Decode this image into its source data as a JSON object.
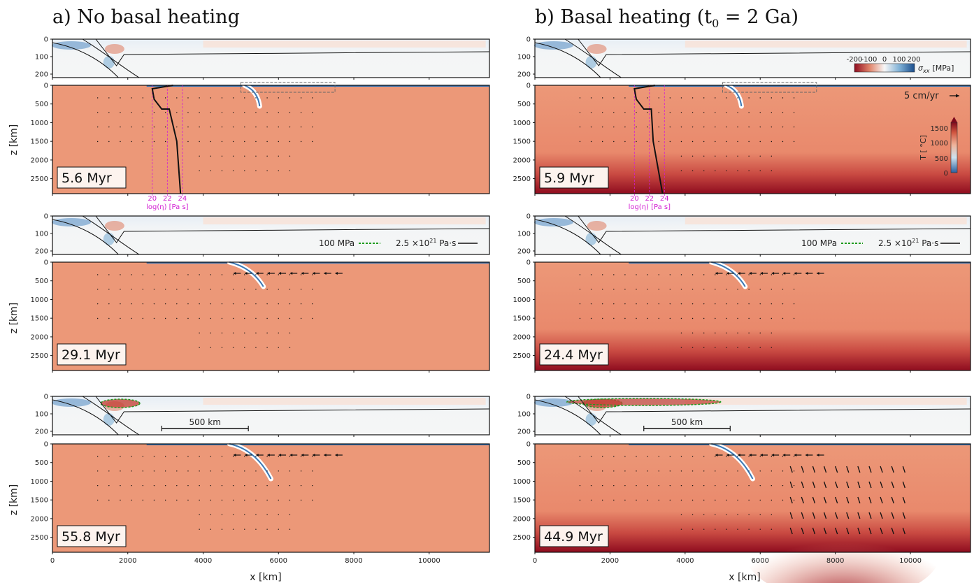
{
  "figure": {
    "panel_a_title": "a)  No basal heating",
    "panel_b_title_main": "b)  Basal heating  (t",
    "panel_b_title_sub": "0",
    "panel_b_title_end": " = 2 Ga)",
    "xlabel": "x  [km]",
    "zlabel": "z  [km]",
    "x_ticks": [
      "0",
      "2000",
      "4000",
      "6000",
      "8000",
      "10000"
    ],
    "z_ticks_mantle": [
      "0",
      "500",
      "1000",
      "1500",
      "2000",
      "2500"
    ],
    "z_ticks_zoom": [
      "0",
      "100",
      "200"
    ],
    "snapshots_a": [
      "5.6 Myr",
      "29.1 Myr",
      "55.8 Myr"
    ],
    "snapshots_b": [
      "5.9 Myr",
      "24.4 Myr",
      "44.9 Myr"
    ],
    "stress_legend": "100 MPa",
    "viscosity_legend_base": "2.5 ×10",
    "viscosity_legend_exp": "21",
    "viscosity_legend_unit": " Pa·s",
    "scalebar_label": "500 km",
    "velocity_label": "5 cm/yr",
    "sigma_label": "σ",
    "sigma_sub": "xx",
    "sigma_unit": "[MPa]",
    "sigma_ticks": [
      "-200",
      "-100",
      "0",
      "100",
      "200"
    ],
    "temp_label": "T  [ °C]",
    "temp_ticks": [
      "0",
      "500",
      "1000",
      "1500"
    ],
    "visc_ticks": [
      "20",
      "22",
      "24"
    ],
    "visc_label": "log(η)  [Pa s]",
    "colors": {
      "mantle": "#ec9878",
      "hot": "#8f0c1f",
      "cold": "#2f6fb0",
      "stress_contour": "#1f9a1f",
      "viscosity": "#d21fd2"
    }
  },
  "chart_data": {
    "type": "other",
    "description_free": true,
    "x_range_km": [
      0,
      11600
    ],
    "z_range_km": [
      0,
      2900
    ],
    "zoom_z_range_km": [
      0,
      220
    ],
    "viscosity_profile_log_pa_s_ticks": [
      20,
      22,
      24
    ],
    "temperature_colorbar_c": [
      0,
      1800
    ],
    "stress_colorbar_mpa": [
      -200,
      200
    ]
  }
}
